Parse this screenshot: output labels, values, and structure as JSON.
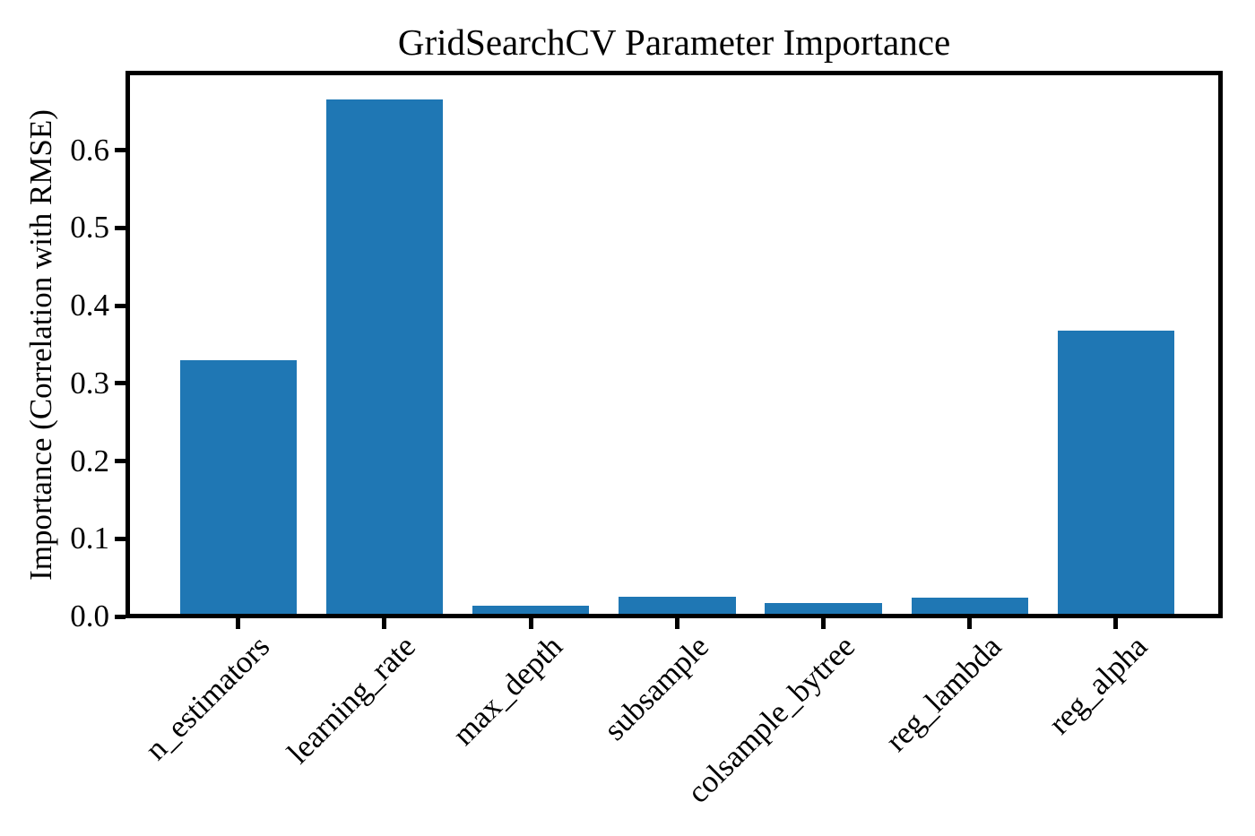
{
  "title": "GridSearchCV Parameter Importance",
  "ylabel": "Importance (Correlation with RMSE)",
  "colors": {
    "bar": "#1f77b4",
    "axis": "#000000",
    "background": "#ffffff"
  },
  "chart_data": {
    "type": "bar",
    "title": "GridSearchCV Parameter Importance",
    "xlabel": "",
    "ylabel": "Importance (Correlation with RMSE)",
    "categories": [
      "n_estimators",
      "learning_rate",
      "max_depth",
      "subsample",
      "colsample_bytree",
      "reg_lambda",
      "reg_alpha"
    ],
    "values": [
      0.33,
      0.665,
      0.014,
      0.025,
      0.017,
      0.024,
      0.368
    ],
    "bar_color": "#1f77b4",
    "yticks": [
      "0.0",
      "0.1",
      "0.2",
      "0.3",
      "0.4",
      "0.5",
      "0.6"
    ],
    "ytick_values": [
      0.0,
      0.1,
      0.2,
      0.3,
      0.4,
      0.5,
      0.6
    ],
    "ylim": [
      0,
      0.7
    ],
    "grid": false,
    "legend_position": "none",
    "x_tick_rotation_deg": 45
  }
}
